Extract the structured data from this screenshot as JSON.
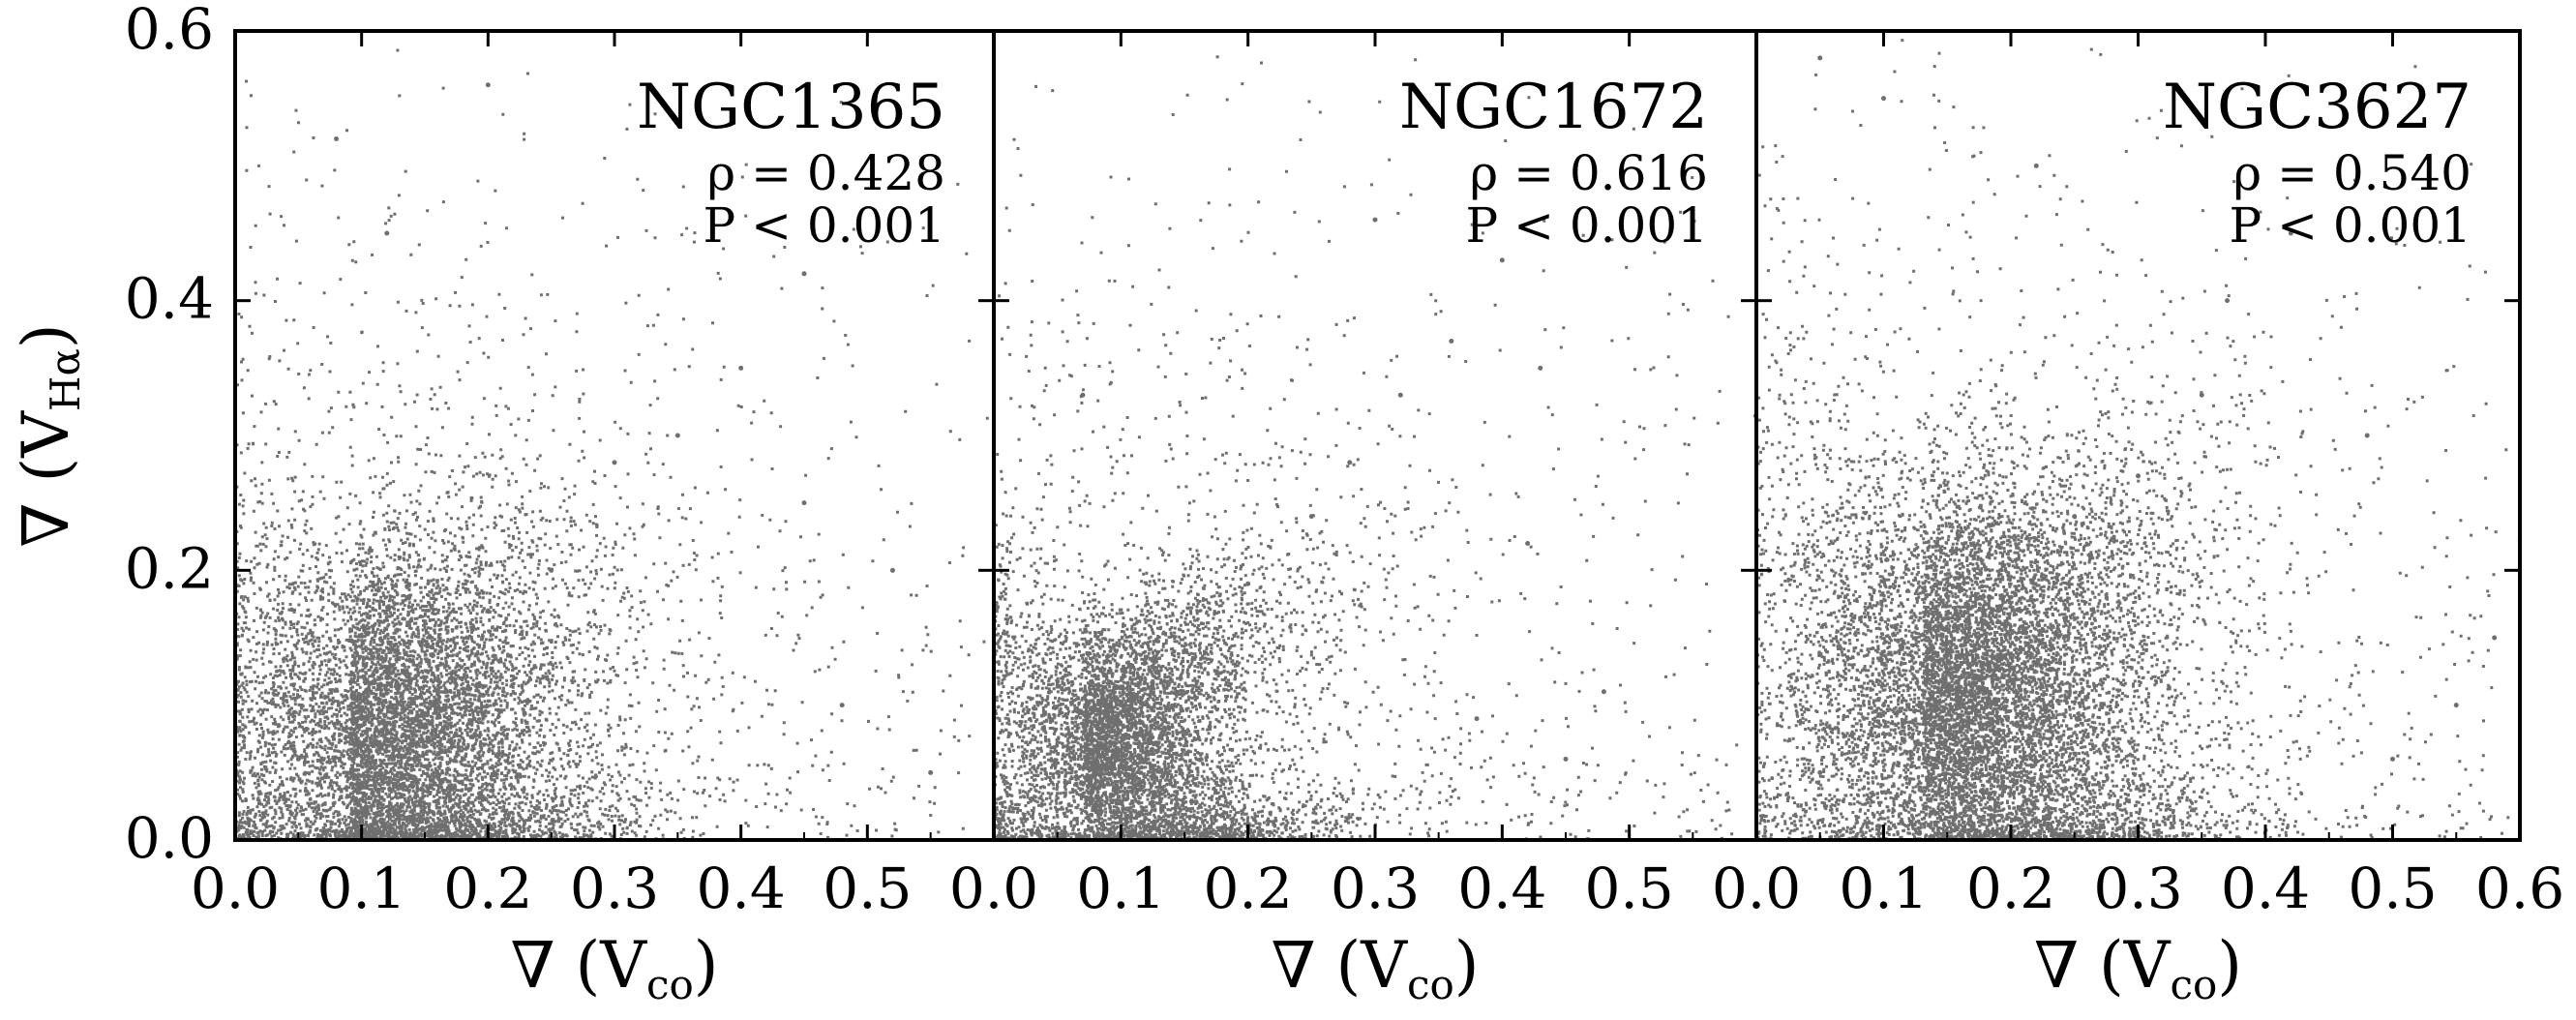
{
  "chart_data": [
    {
      "type": "scatter",
      "title": "NGC1365",
      "stats": [
        "ρ = 0.428",
        "P < 0.001"
      ],
      "xlabel": "∇ (V",
      "xlabel_sub": "co",
      "ylabel": "∇ (V",
      "ylabel_sub": "Hα",
      "xlim": [
        0.0,
        0.6
      ],
      "ylim": [
        0.0,
        0.6
      ],
      "xticks": [
        "0.0",
        "0.1",
        "0.2",
        "0.3",
        "0.4",
        "0.5"
      ],
      "yticks": [
        "0.0",
        "0.2",
        "0.4",
        "0.6"
      ],
      "point_color": "#6f6f6f",
      "cloud": {
        "n": 9000,
        "center": [
          0.09,
          0.08
        ],
        "spread": [
          0.09,
          0.075
        ],
        "corr": 0.45
      },
      "sample_points": [
        [
          0.05,
          0.06
        ],
        [
          0.1,
          0.09
        ],
        [
          0.15,
          0.12
        ],
        [
          0.2,
          0.17
        ],
        [
          0.25,
          0.2
        ],
        [
          0.3,
          0.28
        ],
        [
          0.35,
          0.3
        ],
        [
          0.4,
          0.35
        ],
        [
          0.45,
          0.42
        ],
        [
          0.12,
          0.45
        ],
        [
          0.08,
          0.52
        ],
        [
          0.2,
          0.56
        ],
        [
          0.48,
          0.1
        ],
        [
          0.55,
          0.05
        ],
        [
          0.52,
          0.2
        ],
        [
          0.45,
          0.25
        ]
      ]
    },
    {
      "type": "scatter",
      "title": "NGC1672",
      "stats": [
        "ρ = 0.616",
        "P < 0.001"
      ],
      "xlabel": "∇ (V",
      "xlabel_sub": "co",
      "xlim": [
        0.0,
        0.6
      ],
      "ylim": [
        0.0,
        0.6
      ],
      "xticks": [
        "0.0",
        "0.1",
        "0.2",
        "0.3",
        "0.4",
        "0.5"
      ],
      "point_color": "#6f6f6f",
      "cloud": {
        "n": 7000,
        "center": [
          0.07,
          0.07
        ],
        "spread": [
          0.075,
          0.06
        ],
        "corr": 0.7
      },
      "sample_points": [
        [
          0.05,
          0.05
        ],
        [
          0.1,
          0.1
        ],
        [
          0.15,
          0.14
        ],
        [
          0.2,
          0.19
        ],
        [
          0.25,
          0.24
        ],
        [
          0.28,
          0.28
        ],
        [
          0.32,
          0.33
        ],
        [
          0.36,
          0.37
        ],
        [
          0.4,
          0.43
        ],
        [
          0.3,
          0.46
        ],
        [
          0.38,
          0.09
        ],
        [
          0.42,
          0.22
        ],
        [
          0.45,
          0.06
        ],
        [
          0.48,
          0.11
        ],
        [
          0.43,
          0.35
        ],
        [
          0.07,
          0.33
        ]
      ]
    },
    {
      "type": "scatter",
      "title": "NGC3627",
      "stats": [
        "ρ = 0.540",
        "P < 0.001"
      ],
      "xlabel": "∇ (V",
      "xlabel_sub": "co",
      "xlim": [
        0.0,
        0.6
      ],
      "ylim": [
        0.0,
        0.6
      ],
      "xticks": [
        "0.0",
        "0.1",
        "0.2",
        "0.3",
        "0.4",
        "0.5",
        "0.6"
      ],
      "point_color": "#6f6f6f",
      "cloud": {
        "n": 11000,
        "center": [
          0.13,
          0.11
        ],
        "spread": [
          0.1,
          0.085
        ],
        "corr": 0.55
      },
      "sample_points": [
        [
          0.05,
          0.05
        ],
        [
          0.1,
          0.1
        ],
        [
          0.15,
          0.14
        ],
        [
          0.2,
          0.18
        ],
        [
          0.25,
          0.24
        ],
        [
          0.3,
          0.27
        ],
        [
          0.35,
          0.33
        ],
        [
          0.37,
          0.4
        ],
        [
          0.42,
          0.45
        ],
        [
          0.22,
          0.5
        ],
        [
          0.1,
          0.55
        ],
        [
          0.05,
          0.58
        ],
        [
          0.5,
          0.06
        ],
        [
          0.55,
          0.1
        ],
        [
          0.58,
          0.15
        ],
        [
          0.48,
          0.3
        ]
      ]
    }
  ]
}
